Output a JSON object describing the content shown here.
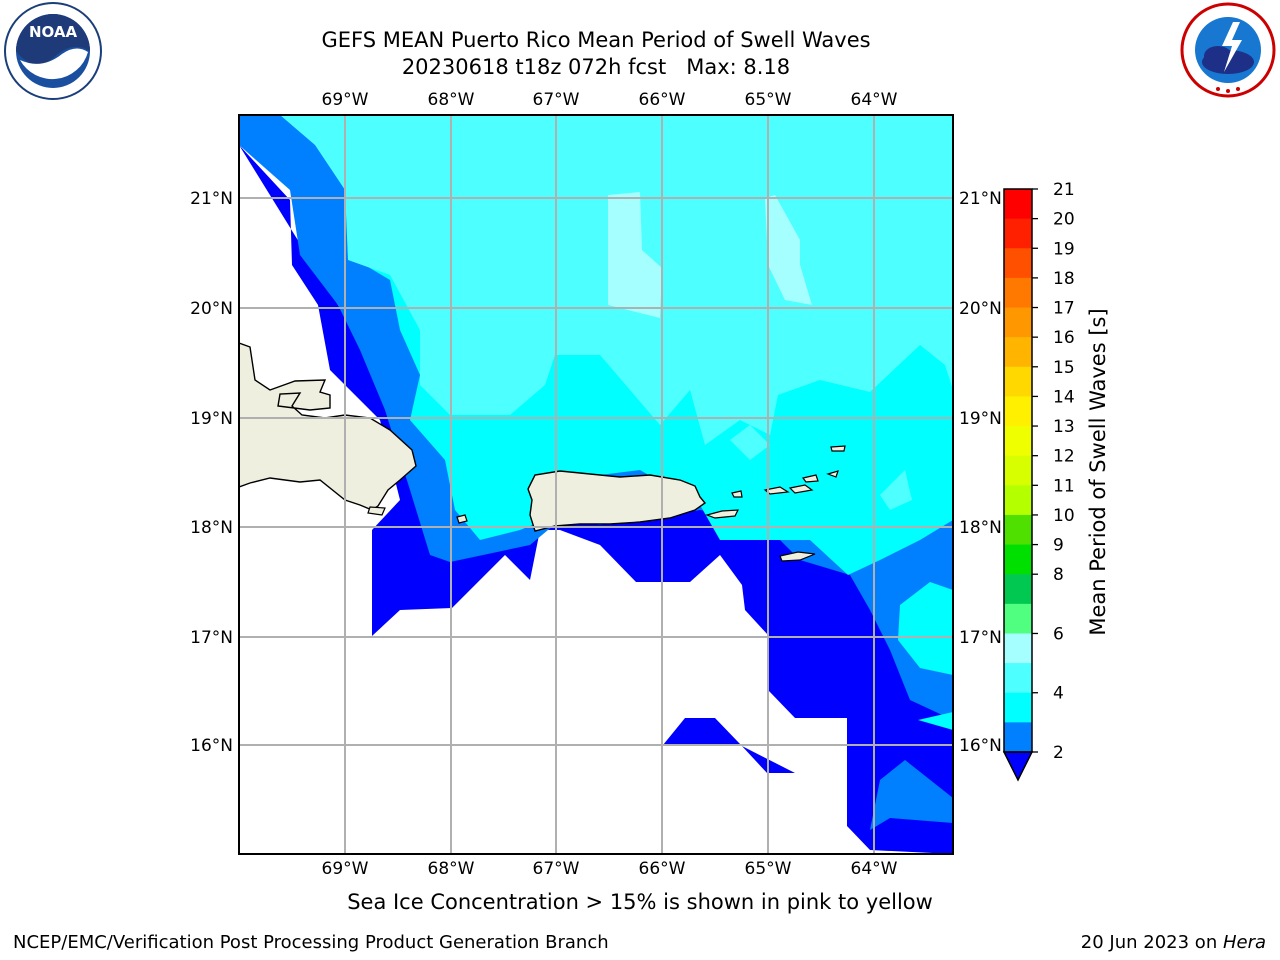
{
  "header": {
    "title_line1": "GEFS MEAN Puerto Rico Mean Period of Swell Waves",
    "title_line2": "20230618 t18z 072h fcst   Max: 8.18"
  },
  "logos": {
    "left": {
      "text": "NOAA",
      "ring_text": "NATIONAL OCEANIC AND ATMOSPHERIC ADMINISTRATION · U.S. DEPARTMENT OF COMMERCE"
    },
    "right": {
      "ring_text": "NATIONAL WEATHER SERVICE"
    }
  },
  "map": {
    "lon_labels": [
      "69°W",
      "68°W",
      "67°W",
      "66°W",
      "65°W",
      "64°W"
    ],
    "lat_labels": [
      "21°N",
      "20°N",
      "19°N",
      "18°N",
      "17°N",
      "16°N"
    ],
    "colors": {
      "band_2_4": "#0080ff",
      "band_lt2": "#0000ff",
      "band_4_6": "#00ffff",
      "band_6_8": "#4dffff",
      "band_8_9": "#a6ffff",
      "land": "#efefdf"
    }
  },
  "colorbar": {
    "label": "Mean Period of Swell Waves [s]",
    "ticks": [
      "21",
      "20",
      "19",
      "18",
      "17",
      "16",
      "15",
      "14",
      "13",
      "12",
      "11",
      "10",
      "9",
      "8",
      "6",
      "4",
      "2"
    ],
    "colors": [
      "#ff0000",
      "#ff2000",
      "#ff5000",
      "#ff7800",
      "#ff9800",
      "#ffb400",
      "#ffd800",
      "#fff000",
      "#f0ff00",
      "#d8ff00",
      "#b4ff00",
      "#50e000",
      "#00e000",
      "#00c850",
      "#50ff80",
      "#a6ffff",
      "#4dffff",
      "#00ffff",
      "#0080ff"
    ],
    "extend_color": "#0000ff"
  },
  "caption": "Sea Ice Concentration > 15% is shown in pink to yellow",
  "footer": {
    "left": "NCEP/EMC/Verification Post Processing Product Generation Branch",
    "right_date": "20 Jun 2023 on ",
    "right_host": "Hera"
  }
}
